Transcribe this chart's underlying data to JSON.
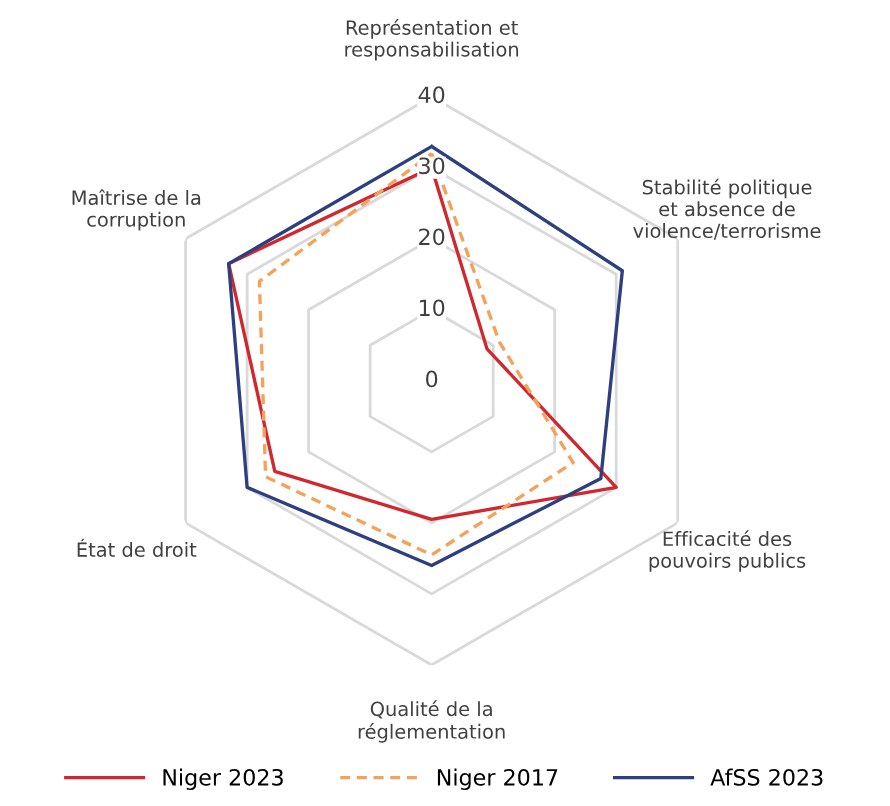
{
  "chart_data": {
    "type": "radar",
    "categories": [
      "Représentation et\nresponsabilisation",
      "Stabilité politique\net absence de\nviolence/terrorisme",
      "Efficacité des\npouvoirs publics",
      "Qualité de la\nréglementation",
      "État de droit",
      "Maîtrise de la\ncorruption"
    ],
    "ylim": [
      0,
      40
    ],
    "yticks": [
      0,
      10,
      20,
      30,
      40
    ],
    "grid": true,
    "legend": "bottom",
    "series": [
      {
        "name": "Niger 2023",
        "color": "#d0282e",
        "line_style": "solid",
        "values": [
          30,
          9,
          30,
          19.5,
          25.5,
          33
        ]
      },
      {
        "name": "Niger 2017",
        "color": "#f4a25a",
        "line_style": "dashed",
        "values": [
          32,
          11,
          23,
          24.5,
          27,
          28
        ]
      },
      {
        "name": "AfSS 2023",
        "color": "#2e3f80",
        "line_style": "solid",
        "values": [
          33,
          31,
          27.5,
          26,
          30,
          33
        ]
      }
    ]
  }
}
